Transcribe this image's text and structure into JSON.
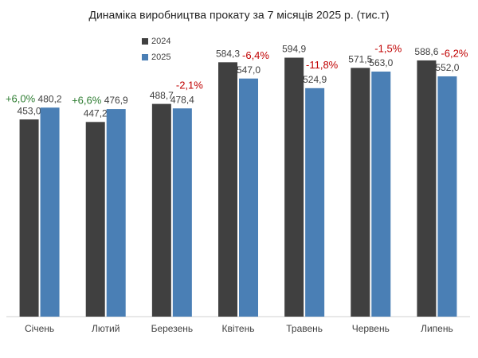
{
  "chart_data": {
    "type": "bar",
    "title": "Динаміка виробництва прокату за 7 місяців 2025 р. (тис.т)",
    "categories": [
      "Січень",
      "Лютий",
      "Березень",
      "Квітень",
      "Травень",
      "Червень",
      "Липень"
    ],
    "series": [
      {
        "name": "2024",
        "color": "#404040",
        "values": [
          453.0,
          447.2,
          488.7,
          584.3,
          594.9,
          571.5,
          588.6
        ],
        "value_labels": [
          "453,0",
          "447,2",
          "488,7",
          "584,3",
          "594,9",
          "571,5",
          "588,6"
        ]
      },
      {
        "name": "2025",
        "color": "#4a7fb5",
        "values": [
          480.2,
          476.9,
          478.4,
          547.0,
          524.9,
          563.0,
          552.0
        ],
        "value_labels": [
          "480,2",
          "476,9",
          "478,4",
          "547,0",
          "524,9",
          "563,0",
          "552,0"
        ]
      }
    ],
    "annotations": [
      {
        "text": "+6,0%",
        "color": "#2e7d32"
      },
      {
        "text": "+6,6%",
        "color": "#2e7d32"
      },
      {
        "text": "-2,1%",
        "color": "#c00000"
      },
      {
        "text": "-6,4%",
        "color": "#c00000"
      },
      {
        "text": "-11,8%",
        "color": "#c00000"
      },
      {
        "text": "-1,5%",
        "color": "#c00000"
      },
      {
        "text": "-6,2%",
        "color": "#c00000"
      }
    ],
    "ylim": [
      0,
      700
    ]
  }
}
